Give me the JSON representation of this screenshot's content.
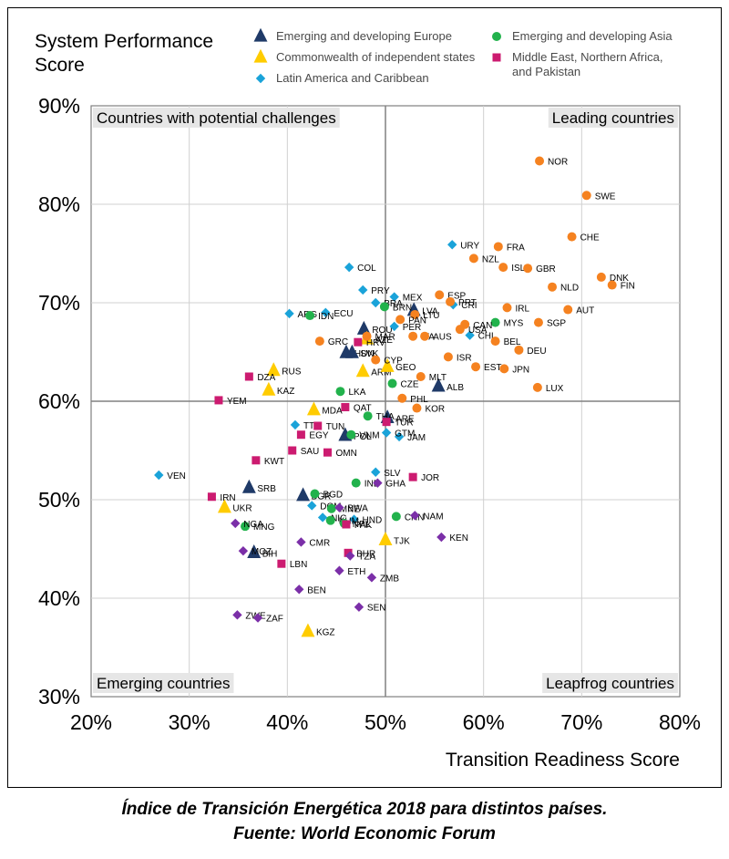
{
  "caption": {
    "line1": "Índice de Transición Energética 2018 para distintos países.",
    "line2": "Fuente: World Economic Forum"
  },
  "chart_data": {
    "type": "scatter",
    "title": "",
    "ylabel": "System Performance Score",
    "xlabel": "Transition Readiness Score",
    "xlim": [
      20,
      80
    ],
    "ylim": [
      30,
      90
    ],
    "x_ticks": [
      "20%",
      "30%",
      "40%",
      "50%",
      "60%",
      "70%",
      "80%"
    ],
    "y_ticks": [
      "30%",
      "40%",
      "50%",
      "60%",
      "70%",
      "80%",
      "90%"
    ],
    "x_tick_values": [
      20,
      30,
      40,
      50,
      60,
      70,
      80
    ],
    "y_tick_values": [
      30,
      40,
      50,
      60,
      70,
      80,
      90
    ],
    "grid": true,
    "legend_position": "top",
    "quadrants": {
      "top_left": "Countries with potential challenges",
      "top_right": "Leading countries",
      "bottom_left": "Emerging countries",
      "bottom_right": "Leapfrog countries"
    },
    "series": [
      {
        "name": "Emerging and developing Europe",
        "shape": "triangle",
        "color": "#1f3a68",
        "points": [
          {
            "label": "LVA",
            "x": 52.9,
            "y": 69.2
          },
          {
            "label": "ROU",
            "x": 47.8,
            "y": 67.3
          },
          {
            "label": "HUN",
            "x": 46.0,
            "y": 64.9
          },
          {
            "label": "SVK",
            "x": 46.6,
            "y": 64.9
          },
          {
            "label": "ALB",
            "x": 55.4,
            "y": 61.5
          },
          {
            "label": "ARE",
            "x": 50.2,
            "y": 58.3
          },
          {
            "label": "POL",
            "x": 45.9,
            "y": 56.5
          },
          {
            "label": "SRB",
            "x": 36.1,
            "y": 51.2
          },
          {
            "label": "BGR",
            "x": 41.6,
            "y": 50.4
          },
          {
            "label": "BIH",
            "x": 36.6,
            "y": 44.6
          }
        ]
      },
      {
        "name": "Commonwealth of independent states",
        "shape": "triangle",
        "color": "#ffcc00",
        "points": [
          {
            "label": "AZE",
            "x": 48.1,
            "y": 66.3
          },
          {
            "label": "ARM",
            "x": 47.7,
            "y": 63.0
          },
          {
            "label": "GEO",
            "x": 50.2,
            "y": 63.5
          },
          {
            "label": "RUS",
            "x": 38.6,
            "y": 63.1
          },
          {
            "label": "KAZ",
            "x": 38.1,
            "y": 61.1
          },
          {
            "label": "MDA",
            "x": 42.7,
            "y": 59.1
          },
          {
            "label": "UKR",
            "x": 33.6,
            "y": 49.2
          },
          {
            "label": "TJK",
            "x": 50.0,
            "y": 45.9
          },
          {
            "label": "KGZ",
            "x": 42.1,
            "y": 36.6
          }
        ]
      },
      {
        "name": "Latin America and Caribbean",
        "shape": "diamond",
        "color": "#1aa3d9",
        "points": [
          {
            "label": "URY",
            "x": 56.8,
            "y": 75.9
          },
          {
            "label": "COL",
            "x": 46.3,
            "y": 73.6
          },
          {
            "label": "PRY",
            "x": 47.7,
            "y": 71.3
          },
          {
            "label": "MEX",
            "x": 50.9,
            "y": 70.6
          },
          {
            "label": "BRA",
            "x": 49.0,
            "y": 70.0
          },
          {
            "label": "ECU",
            "x": 43.9,
            "y": 69.0
          },
          {
            "label": "ARG",
            "x": 40.2,
            "y": 68.9
          },
          {
            "label": "PER",
            "x": 50.9,
            "y": 67.6
          },
          {
            "label": "CRI",
            "x": 56.9,
            "y": 69.8
          },
          {
            "label": "CHL",
            "x": 58.6,
            "y": 66.7
          },
          {
            "label": "TTO",
            "x": 40.8,
            "y": 57.6
          },
          {
            "label": "JAM",
            "x": 51.4,
            "y": 56.4
          },
          {
            "label": "GTM",
            "x": 50.1,
            "y": 56.8
          },
          {
            "label": "SLV",
            "x": 49.0,
            "y": 52.8
          },
          {
            "label": "VEN",
            "x": 26.9,
            "y": 52.5
          },
          {
            "label": "DOM",
            "x": 42.5,
            "y": 49.4
          },
          {
            "label": "NIC",
            "x": 43.6,
            "y": 48.2
          },
          {
            "label": "HND",
            "x": 46.8,
            "y": 48.0
          }
        ]
      },
      {
        "name": "Emerging and developing Asia",
        "shape": "circle",
        "color": "#22b24c",
        "points": [
          {
            "label": "IDN",
            "x": 42.3,
            "y": 68.7
          },
          {
            "label": "BRN",
            "x": 49.9,
            "y": 69.6
          },
          {
            "label": "MYS",
            "x": 61.2,
            "y": 68.0
          },
          {
            "label": "LKA",
            "x": 45.4,
            "y": 61.0
          },
          {
            "label": "CZE",
            "x": 50.7,
            "y": 61.8
          },
          {
            "label": "VNM",
            "x": 46.5,
            "y": 56.6
          },
          {
            "label": "THA",
            "x": 48.2,
            "y": 58.5
          },
          {
            "label": "IND",
            "x": 47.0,
            "y": 51.7
          },
          {
            "label": "BGD",
            "x": 42.8,
            "y": 50.6
          },
          {
            "label": "MNE",
            "x": 44.5,
            "y": 49.1
          },
          {
            "label": "MNG",
            "x": 35.7,
            "y": 47.3
          },
          {
            "label": "CHN",
            "x": 51.1,
            "y": 48.3
          },
          {
            "label": "KHM",
            "x": 44.4,
            "y": 47.9
          },
          {
            "label": "NPL",
            "x": 45.8,
            "y": 47.6
          }
        ]
      },
      {
        "name": "Middle East, Northern Africa, and Pakistan",
        "shape": "square",
        "color": "#cc1b70",
        "points": [
          {
            "label": "DZA",
            "x": 36.1,
            "y": 62.5
          },
          {
            "label": "YEM",
            "x": 33.0,
            "y": 60.1
          },
          {
            "label": "QAT",
            "x": 45.9,
            "y": 59.4
          },
          {
            "label": "TUN",
            "x": 43.1,
            "y": 57.5
          },
          {
            "label": "EGY",
            "x": 41.4,
            "y": 56.6
          },
          {
            "label": "SAU",
            "x": 40.5,
            "y": 55.0
          },
          {
            "label": "OMN",
            "x": 44.1,
            "y": 54.8
          },
          {
            "label": "KWT",
            "x": 36.8,
            "y": 54.0
          },
          {
            "label": "TUR",
            "x": 50.1,
            "y": 57.9
          },
          {
            "label": "HRV",
            "x": 47.2,
            "y": 66.0
          },
          {
            "label": "JOR",
            "x": 52.8,
            "y": 52.3
          },
          {
            "label": "IRN",
            "x": 32.3,
            "y": 50.3
          },
          {
            "label": "PAK",
            "x": 46.0,
            "y": 47.5
          },
          {
            "label": "LBN",
            "x": 39.4,
            "y": 43.5
          },
          {
            "label": "BHR",
            "x": 46.2,
            "y": 44.6
          }
        ]
      },
      {
        "name": "",
        "shape": "circle",
        "color": "#f58220",
        "points": [
          {
            "label": "NOR",
            "x": 65.7,
            "y": 84.4
          },
          {
            "label": "SWE",
            "x": 70.5,
            "y": 80.9
          },
          {
            "label": "CHE",
            "x": 69.0,
            "y": 76.7
          },
          {
            "label": "FRA",
            "x": 61.5,
            "y": 75.7
          },
          {
            "label": "NZL",
            "x": 59.0,
            "y": 74.5
          },
          {
            "label": "ISL",
            "x": 62.0,
            "y": 73.6
          },
          {
            "label": "GBR",
            "x": 64.5,
            "y": 73.5
          },
          {
            "label": "DNK",
            "x": 72.0,
            "y": 72.6
          },
          {
            "label": "FIN",
            "x": 73.1,
            "y": 71.8
          },
          {
            "label": "NLD",
            "x": 67.0,
            "y": 71.6
          },
          {
            "label": "ESP",
            "x": 55.5,
            "y": 70.8
          },
          {
            "label": "PRT",
            "x": 56.6,
            "y": 70.1
          },
          {
            "label": "IRL",
            "x": 62.4,
            "y": 69.5
          },
          {
            "label": "AUT",
            "x": 68.6,
            "y": 69.3
          },
          {
            "label": "LTU",
            "x": 53.0,
            "y": 68.8
          },
          {
            "label": "PAN",
            "x": 51.5,
            "y": 68.3
          },
          {
            "label": "CAN",
            "x": 58.1,
            "y": 67.8
          },
          {
            "label": "SGP",
            "x": 65.6,
            "y": 68.0
          },
          {
            "label": "USA",
            "x": 57.6,
            "y": 67.3
          },
          {
            "label": "BEL",
            "x": 61.2,
            "y": 66.1
          },
          {
            "label": "MAR",
            "x": 48.1,
            "y": 66.6
          },
          {
            "label": "GRC",
            "x": 43.3,
            "y": 66.1
          },
          {
            "label": "ITA",
            "x": 52.8,
            "y": 66.6
          },
          {
            "label": "AUS",
            "x": 54.0,
            "y": 66.6
          },
          {
            "label": "DEU",
            "x": 63.6,
            "y": 65.2
          },
          {
            "label": "ISR",
            "x": 56.4,
            "y": 64.5
          },
          {
            "label": "CYP",
            "x": 49.0,
            "y": 64.2
          },
          {
            "label": "JPN",
            "x": 62.1,
            "y": 63.3
          },
          {
            "label": "EST",
            "x": 59.2,
            "y": 63.5
          },
          {
            "label": "MLT",
            "x": 53.6,
            "y": 62.5
          },
          {
            "label": "LUX",
            "x": 65.5,
            "y": 61.4
          },
          {
            "label": "PHL",
            "x": 51.7,
            "y": 60.3
          },
          {
            "label": "KOR",
            "x": 53.2,
            "y": 59.3
          }
        ]
      },
      {
        "name": "",
        "shape": "diamond",
        "color": "#7b2fa8",
        "points": [
          {
            "label": "GHA",
            "x": 49.2,
            "y": 51.7
          },
          {
            "label": "BWA",
            "x": 45.3,
            "y": 49.2
          },
          {
            "label": "NGA",
            "x": 34.7,
            "y": 47.6
          },
          {
            "label": "NAM",
            "x": 53.0,
            "y": 48.4
          },
          {
            "label": "KEN",
            "x": 55.7,
            "y": 46.2
          },
          {
            "label": "CMR",
            "x": 41.4,
            "y": 45.7
          },
          {
            "label": "MOZ",
            "x": 35.5,
            "y": 44.8
          },
          {
            "label": "TZA",
            "x": 46.4,
            "y": 44.3
          },
          {
            "label": "ETH",
            "x": 45.3,
            "y": 42.8
          },
          {
            "label": "ZMB",
            "x": 48.6,
            "y": 42.1
          },
          {
            "label": "BEN",
            "x": 41.2,
            "y": 40.9
          },
          {
            "label": "SEN",
            "x": 47.3,
            "y": 39.1
          },
          {
            "label": "ZWE",
            "x": 34.9,
            "y": 38.3
          },
          {
            "label": "ZAF",
            "x": 37.0,
            "y": 38.0
          }
        ]
      }
    ]
  }
}
